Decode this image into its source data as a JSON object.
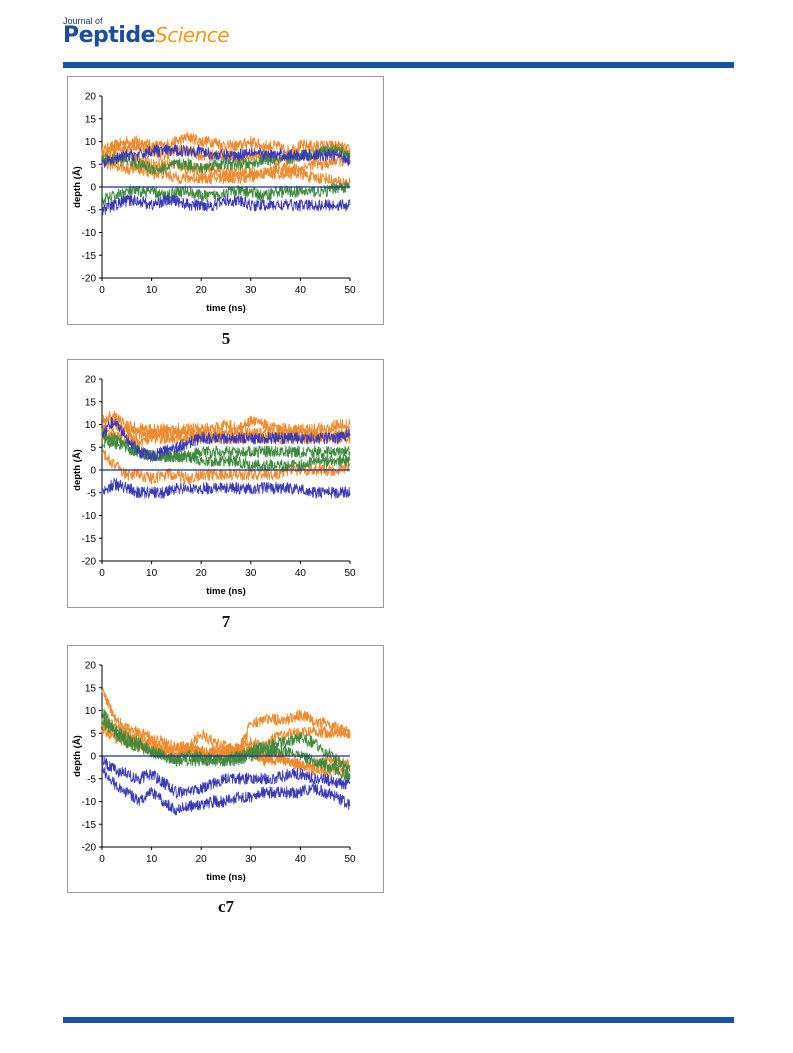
{
  "header": {
    "journal_of": "Journal of",
    "journal_name_part1": "Peptide",
    "journal_name_part2": "Science"
  },
  "colors": {
    "rule": "#1753a4",
    "series_orange": "#f08a2c",
    "series_green": "#3f8a3f",
    "series_blue": "#3a3ab8",
    "zero_line": "#1f2f8f"
  },
  "chart_data": [
    {
      "type": "line",
      "caption": "5",
      "xlabel": "time (ns)",
      "ylabel": "depth (Å)",
      "xlim": [
        0,
        50
      ],
      "ylim": [
        -20,
        20
      ],
      "xticks": [
        0,
        10,
        20,
        30,
        40,
        50
      ],
      "yticks": [
        20,
        15,
        10,
        5,
        0,
        -5,
        -10,
        -15,
        -20
      ],
      "grid": false,
      "legend": "none",
      "x": [
        0,
        2.5,
        5,
        7.5,
        10,
        12.5,
        15,
        17.5,
        20,
        22.5,
        25,
        27.5,
        30,
        32.5,
        35,
        37.5,
        40,
        42.5,
        45,
        47.5,
        50
      ],
      "series": [
        {
          "color": "orange",
          "values": [
            8,
            9,
            10,
            10,
            9,
            9,
            10,
            11,
            10,
            10,
            9,
            9,
            10,
            9,
            9,
            8,
            9,
            9,
            9,
            9,
            8
          ]
        },
        {
          "color": "orange",
          "values": [
            7,
            8,
            9,
            9,
            8,
            7,
            8,
            8,
            7,
            7,
            7,
            6,
            7,
            7,
            6,
            6,
            7,
            7,
            8,
            8,
            7
          ]
        },
        {
          "color": "orange",
          "values": [
            6,
            6,
            7,
            6,
            5,
            5,
            5,
            4,
            4,
            4,
            3,
            3,
            3,
            3,
            4,
            4,
            4,
            5,
            5,
            6,
            5
          ]
        },
        {
          "color": "orange",
          "values": [
            5,
            5,
            4,
            4,
            3,
            3,
            2,
            2,
            2,
            2,
            2,
            2,
            2,
            3,
            3,
            3,
            3,
            2,
            2,
            1,
            1
          ]
        },
        {
          "color": "green",
          "values": [
            6,
            6,
            6,
            5,
            4,
            4,
            5,
            5,
            4,
            5,
            5,
            5,
            5,
            6,
            6,
            6,
            7,
            7,
            8,
            8,
            7
          ]
        },
        {
          "color": "green",
          "values": [
            -3,
            -2,
            -1,
            -1,
            -1,
            -2,
            -1,
            -1,
            -2,
            -2,
            -1,
            -1,
            -1,
            -2,
            -1,
            -1,
            -1,
            -1,
            -1,
            0,
            0
          ]
        },
        {
          "color": "blue",
          "values": [
            5,
            6,
            7,
            7,
            8,
            8,
            8,
            8,
            8,
            7,
            7,
            7,
            8,
            7,
            7,
            7,
            7,
            7,
            7,
            7,
            6
          ]
        },
        {
          "color": "blue",
          "values": [
            -5,
            -4,
            -3,
            -3,
            -4,
            -3,
            -3,
            -4,
            -4,
            -4,
            -3,
            -3,
            -4,
            -4,
            -4,
            -4,
            -4,
            -4,
            -4,
            -4,
            -4
          ]
        }
      ]
    },
    {
      "type": "line",
      "caption": "7",
      "xlabel": "time (ns)",
      "ylabel": "depth (Å)",
      "xlim": [
        0,
        50
      ],
      "ylim": [
        -20,
        20
      ],
      "xticks": [
        0,
        10,
        20,
        30,
        40,
        50
      ],
      "yticks": [
        20,
        15,
        10,
        5,
        0,
        -5,
        -10,
        -15,
        -20
      ],
      "grid": false,
      "legend": "none",
      "x": [
        0,
        2.5,
        5,
        7.5,
        10,
        12.5,
        15,
        17.5,
        20,
        22.5,
        25,
        27.5,
        30,
        32.5,
        35,
        37.5,
        40,
        42.5,
        45,
        47.5,
        50
      ],
      "series": [
        {
          "color": "orange",
          "values": [
            11,
            12,
            10,
            9,
            9,
            9,
            9,
            9,
            9,
            9,
            10,
            9,
            11,
            10,
            9,
            9,
            9,
            9,
            9,
            10,
            10
          ]
        },
        {
          "color": "orange",
          "values": [
            9,
            10,
            9,
            8,
            8,
            8,
            8,
            8,
            8,
            8,
            8,
            8,
            8,
            8,
            8,
            8,
            8,
            8,
            8,
            8,
            8
          ]
        },
        {
          "color": "orange",
          "values": [
            7,
            8,
            7,
            6,
            7,
            7,
            7,
            7,
            7,
            7,
            7,
            7,
            7,
            7,
            7,
            7,
            7,
            7,
            7,
            7,
            7
          ]
        },
        {
          "color": "orange",
          "values": [
            4,
            1,
            -1,
            -1,
            -2,
            -1,
            -1,
            -2,
            -1,
            -1,
            -1,
            -1,
            -1,
            -1,
            -1,
            0,
            0,
            0,
            0,
            0,
            1
          ]
        },
        {
          "color": "green",
          "values": [
            8,
            7,
            5,
            4,
            3,
            3,
            3,
            3,
            4,
            4,
            4,
            4,
            4,
            4,
            4,
            4,
            4,
            4,
            4,
            4,
            4
          ]
        },
        {
          "color": "green",
          "values": [
            6,
            6,
            5,
            4,
            3,
            3,
            3,
            3,
            2,
            2,
            2,
            2,
            1,
            1,
            1,
            1,
            1,
            2,
            2,
            2,
            2
          ]
        },
        {
          "color": "blue",
          "values": [
            8,
            11,
            7,
            4,
            3,
            4,
            5,
            6,
            7,
            7,
            7,
            7,
            7,
            7,
            7,
            7,
            7,
            7,
            7,
            7,
            8
          ]
        },
        {
          "color": "blue",
          "values": [
            -5,
            -3,
            -4,
            -5,
            -5,
            -5,
            -4,
            -4,
            -4,
            -4,
            -4,
            -4,
            -4,
            -4,
            -4,
            -4,
            -4,
            -5,
            -5,
            -5,
            -5
          ]
        }
      ]
    },
    {
      "type": "line",
      "caption": "c7",
      "xlabel": "time (ns)",
      "ylabel": "depth (Å)",
      "xlim": [
        0,
        50
      ],
      "ylim": [
        -20,
        20
      ],
      "xticks": [
        0,
        10,
        20,
        30,
        40,
        50
      ],
      "yticks": [
        20,
        15,
        10,
        5,
        0,
        -5,
        -10,
        -15,
        -20
      ],
      "grid": false,
      "legend": "none",
      "x": [
        0,
        2.5,
        5,
        7.5,
        10,
        12.5,
        15,
        17.5,
        20,
        22.5,
        25,
        27.5,
        30,
        32.5,
        35,
        37.5,
        40,
        42.5,
        45,
        47.5,
        50
      ],
      "series": [
        {
          "color": "orange",
          "values": [
            15,
            8,
            6,
            5,
            4,
            3,
            2,
            2,
            5,
            3,
            2,
            1,
            7,
            8,
            8,
            8,
            9,
            8,
            7,
            6,
            5
          ]
        },
        {
          "color": "orange",
          "values": [
            9,
            6,
            5,
            4,
            3,
            1,
            0,
            2,
            1,
            1,
            0,
            2,
            3,
            2,
            4,
            5,
            5,
            6,
            5,
            5,
            5
          ]
        },
        {
          "color": "orange",
          "values": [
            7,
            5,
            4,
            3,
            2,
            2,
            1,
            1,
            1,
            0,
            1,
            1,
            1,
            0,
            -1,
            -1,
            -2,
            -2,
            -1,
            -1,
            -2
          ]
        },
        {
          "color": "orange",
          "values": [
            6,
            4,
            3,
            2,
            1,
            0,
            0,
            1,
            0,
            1,
            1,
            0,
            1,
            -1,
            0,
            -1,
            -2,
            -3,
            -3,
            -3,
            -4
          ]
        },
        {
          "color": "green",
          "values": [
            10,
            6,
            4,
            3,
            1,
            0,
            -1,
            0,
            0,
            -1,
            -1,
            0,
            1,
            2,
            3,
            3,
            4,
            3,
            1,
            -1,
            -3
          ]
        },
        {
          "color": "green",
          "values": [
            8,
            5,
            3,
            2,
            1,
            0,
            -1,
            -1,
            -1,
            -1,
            -1,
            -1,
            0,
            1,
            1,
            1,
            0,
            -1,
            -2,
            -3,
            -5
          ]
        },
        {
          "color": "blue",
          "values": [
            -1,
            -3,
            -4,
            -5,
            -4,
            -6,
            -8,
            -8,
            -7,
            -6,
            -5,
            -5,
            -5,
            -5,
            -5,
            -4,
            -4,
            -5,
            -5,
            -6,
            -6
          ]
        },
        {
          "color": "blue",
          "values": [
            -3,
            -6,
            -8,
            -10,
            -8,
            -10,
            -12,
            -11,
            -11,
            -10,
            -10,
            -9,
            -9,
            -8,
            -8,
            -8,
            -8,
            -7,
            -8,
            -9,
            -11
          ]
        }
      ]
    }
  ]
}
